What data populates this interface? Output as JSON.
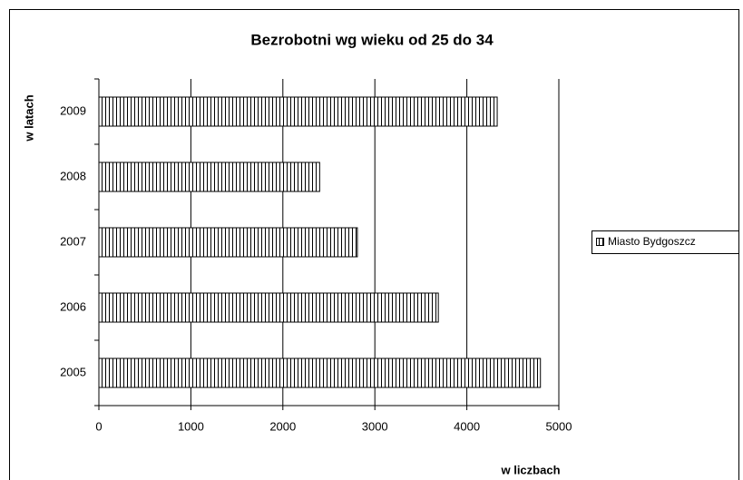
{
  "chart_data": {
    "type": "barh",
    "title": "Bezrobotni wg wieku od 25 do 34",
    "xlabel": "w liczbach",
    "ylabel": "w latach",
    "categories": [
      "2005",
      "2006",
      "2007",
      "2008",
      "2009"
    ],
    "series": [
      {
        "name": "Miasto Bydgoszcz",
        "color": "#000000",
        "values": [
          4800,
          3690,
          2810,
          2400,
          4330
        ]
      }
    ],
    "xlim": [
      0,
      5000
    ],
    "xticks": [
      0,
      1000,
      2000,
      3000,
      4000,
      5000
    ],
    "grid": true,
    "legend": "right"
  }
}
